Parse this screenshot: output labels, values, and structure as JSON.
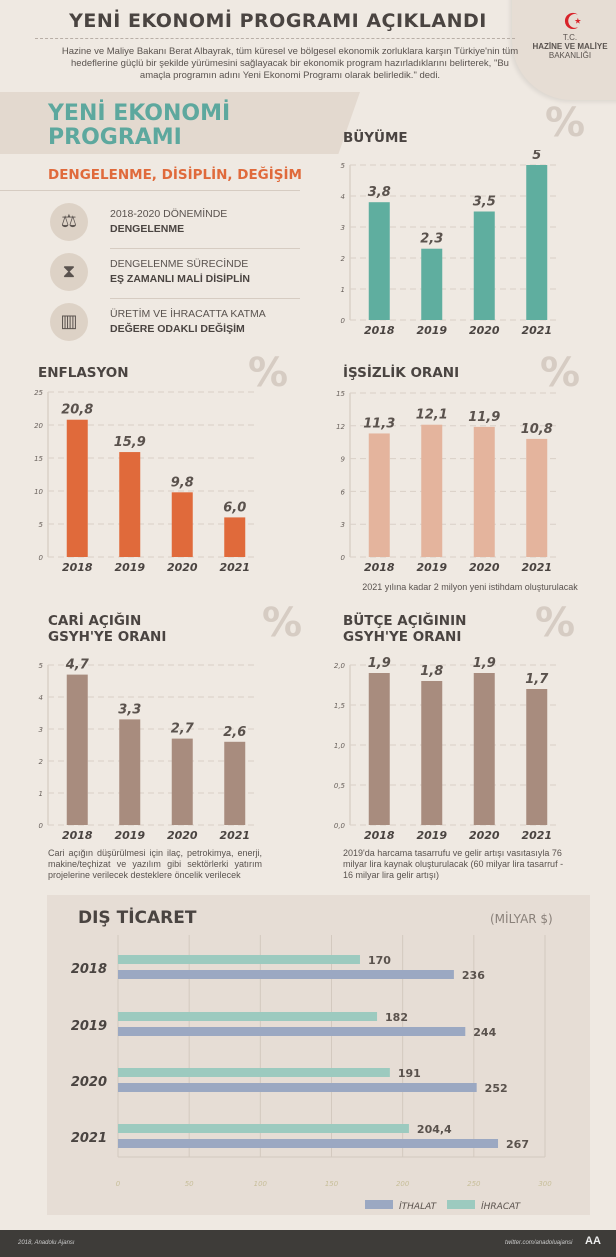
{
  "header": {
    "title": "YENİ EKONOMİ PROGRAMI AÇIKLANDI",
    "lead": "Hazine ve Maliye Bakanı Berat Albayrak, tüm küresel ve bölgesel ekonomik zorluklara karşın Türkiye'nin tüm hedeflerine güçlü bir şekilde yürümesini sağlayacak bir ekonomik program hazırladıklarını belirterek, \"Bu amaçla programın adını Yeni Ekonomi Programı olarak belirledik.\" dedi.",
    "ministry_tc": "T.C.",
    "ministry_name": "HAZİNE VE MALİYE",
    "ministry_name2": "BAKANLIĞI"
  },
  "program": {
    "title1": "YENİ EKONOMİ",
    "title2": "PROGRAMI",
    "slogan": "DENGELENME, DİSİPLİN, DEĞİŞİM",
    "items": [
      {
        "icon": "scale-icon",
        "line1": "2018-2020 DÖNEMİNDE",
        "line2": "DENGELENME"
      },
      {
        "icon": "hourglass-icon",
        "line1": "DENGELENME SÜRECİNDE",
        "line2": "EŞ ZAMANLI MALİ DİSİPLİN"
      },
      {
        "icon": "factory-icon",
        "line1": "ÜRETİM VE İHRACATTA KATMA",
        "line2": "DEĞERE ODAKLI DEĞİŞİM"
      }
    ]
  },
  "percent_symbol": "%",
  "chart_data": [
    {
      "type": "bar",
      "title": "BÜYÜME",
      "unit": "%",
      "categories": [
        "2018",
        "2019",
        "2020",
        "2021"
      ],
      "values": [
        3.8,
        2.3,
        3.5,
        5
      ],
      "labels": [
        "3,8",
        "2,3",
        "3,5",
        "5"
      ],
      "ylim": [
        0,
        5
      ],
      "yticks": [
        "0",
        "1",
        "2",
        "3",
        "4",
        "5"
      ],
      "color": "#5fae9f",
      "grid": true
    },
    {
      "type": "bar",
      "title": "ENFLASYON",
      "unit": "%",
      "categories": [
        "2018",
        "2019",
        "2020",
        "2021"
      ],
      "values": [
        20.8,
        15.9,
        9.8,
        6.0
      ],
      "labels": [
        "20,8",
        "15,9",
        "9,8",
        "6,0"
      ],
      "ylim": [
        0,
        25
      ],
      "yticks": [
        "0",
        "5",
        "10",
        "15",
        "20",
        "25"
      ],
      "color": "#e06a3b",
      "grid": true
    },
    {
      "type": "bar",
      "title": "İŞSİZLİK ORANI",
      "unit": "%",
      "categories": [
        "2018",
        "2019",
        "2020",
        "2021"
      ],
      "values": [
        11.3,
        12.1,
        11.9,
        10.8
      ],
      "labels": [
        "11,3",
        "12,1",
        "11,9",
        "10,8"
      ],
      "ylim": [
        0,
        15
      ],
      "yticks": [
        "0",
        "3",
        "6",
        "9",
        "12",
        "15"
      ],
      "color": "#e4b49d",
      "grid": true,
      "note": "2021 yılına kadar 2 milyon yeni istihdam oluşturulacak"
    },
    {
      "type": "bar",
      "title": "CARİ AÇIĞIN GSYH'YE ORANI",
      "unit": "%",
      "categories": [
        "2018",
        "2019",
        "2020",
        "2021"
      ],
      "values": [
        4.7,
        3.3,
        2.7,
        2.6
      ],
      "labels": [
        "4,7",
        "3,3",
        "2,7",
        "2,6"
      ],
      "ylim": [
        0,
        5
      ],
      "yticks": [
        "0",
        "1",
        "2",
        "3",
        "4",
        "5"
      ],
      "color": "#a88c7e",
      "grid": true,
      "note": "Cari açığın düşürülmesi için ilaç, petrokimya, enerji, makine/teçhizat ve yazılım gibi sektörlerki yatırım projelerine verilecek desteklere öncelik verilecek"
    },
    {
      "type": "bar",
      "title": "BÜTÇE AÇIĞININ GSYH'YE ORANI",
      "unit": "%",
      "categories": [
        "2018",
        "2019",
        "2020",
        "2021"
      ],
      "values": [
        1.9,
        1.8,
        1.9,
        1.7
      ],
      "labels": [
        "1,9",
        "1,8",
        "1,9",
        "1,7"
      ],
      "ylim": [
        0,
        2
      ],
      "yticks": [
        "0,0",
        "0,5",
        "1,0",
        "1,5",
        "2,0"
      ],
      "color": "#a88c7e",
      "grid": true,
      "note": "2019'da harcama tasarrufu ve gelir artışı vasıtasıyla 76 milyar lira kaynak oluşturulacak (60 milyar lira tasarruf - 16 milyar lira gelir artışı)"
    },
    {
      "type": "bar",
      "orientation": "horizontal",
      "title": "DIŞ TİCARET",
      "unit": "(MİLYAR $)",
      "categories": [
        "2018",
        "2019",
        "2020",
        "2021"
      ],
      "series": [
        {
          "name": "İHRACAT",
          "values": [
            170,
            182,
            191,
            204.4
          ],
          "labels": [
            "170",
            "182",
            "191",
            "204,4"
          ],
          "color": "#9ccabf"
        },
        {
          "name": "İTHALAT",
          "values": [
            236,
            244,
            252,
            267
          ],
          "labels": [
            "236",
            "244",
            "252",
            "267"
          ],
          "color": "#9ba8c2"
        }
      ],
      "xlim": [
        0,
        300
      ],
      "xticks": [
        "0",
        "50",
        "100",
        "150",
        "200",
        "250",
        "300"
      ],
      "legend": "bottom-right",
      "legend_order": [
        "İTHALAT",
        "İHRACAT"
      ],
      "grid": true
    }
  ],
  "footer": {
    "left": "2018, Anadolu Ajansı",
    "right": "twitter.com/anadoluajansi",
    "logo": "AA"
  }
}
